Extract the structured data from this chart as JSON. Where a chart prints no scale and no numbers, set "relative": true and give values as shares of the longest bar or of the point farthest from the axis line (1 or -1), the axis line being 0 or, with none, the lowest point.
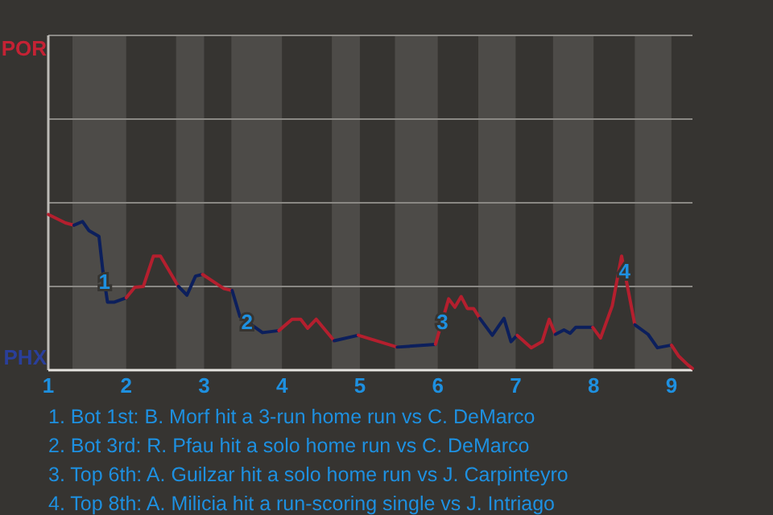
{
  "chart_data": {
    "type": "line",
    "relative": true,
    "xlim": [
      1,
      9.27
    ],
    "xticks": [
      1,
      2,
      3,
      4,
      5,
      6,
      7,
      8,
      9
    ],
    "tick_labels": "x",
    "ref_lines": [
      {
        "axis": "y",
        "value": 0.538,
        "color": "#8a8884"
      }
    ],
    "series": [
      {
        "color": "#b41f2e",
        "x": [
          1.0,
          1.22,
          1.33
        ],
        "values": [
          1.0,
          0.946,
          0.931
        ]
      },
      {
        "color": "#0c1f5c",
        "x": [
          1.33,
          1.44,
          1.52,
          1.65,
          1.7,
          1.76,
          1.85,
          2.0
        ],
        "values": [
          0.931,
          0.955,
          0.897,
          0.86,
          0.639,
          0.437,
          0.437,
          0.465
        ]
      },
      {
        "color": "#b41f2e",
        "x": [
          2.0,
          2.11,
          2.22,
          2.35,
          2.44,
          2.67
        ],
        "values": [
          0.465,
          0.533,
          0.538,
          0.733,
          0.733,
          0.538
        ]
      },
      {
        "color": "#0c1f5c",
        "x": [
          2.67,
          2.78,
          2.89,
          2.98
        ],
        "values": [
          0.538,
          0.482,
          0.604,
          0.615
        ]
      },
      {
        "color": "#b41f2e",
        "x": [
          2.98,
          3.25,
          3.36
        ],
        "values": [
          0.615,
          0.525,
          0.512
        ]
      },
      {
        "color": "#0c1f5c",
        "x": [
          3.36,
          3.46,
          3.75,
          3.96
        ],
        "values": [
          0.512,
          0.344,
          0.241,
          0.254
        ]
      },
      {
        "color": "#b41f2e",
        "x": [
          3.96,
          4.13,
          4.24,
          4.33,
          4.44,
          4.67
        ],
        "values": [
          0.254,
          0.327,
          0.327,
          0.269,
          0.327,
          0.189
        ]
      },
      {
        "color": "#0c1f5c",
        "x": [
          4.67,
          4.98
        ],
        "values": [
          0.189,
          0.224
        ]
      },
      {
        "color": "#b41f2e",
        "x": [
          4.98,
          5.48
        ],
        "values": [
          0.224,
          0.148
        ]
      },
      {
        "color": "#0c1f5c",
        "x": [
          5.48,
          5.97
        ],
        "values": [
          0.148,
          0.166
        ]
      },
      {
        "color": "#b41f2e",
        "x": [
          5.97,
          6.14,
          6.22,
          6.3,
          6.38,
          6.46,
          6.54
        ],
        "values": [
          0.166,
          0.458,
          0.404,
          0.473,
          0.396,
          0.396,
          0.333
        ]
      },
      {
        "color": "#0c1f5c",
        "x": [
          6.54,
          6.7,
          6.85,
          6.94,
          7.02
        ],
        "values": [
          0.333,
          0.224,
          0.333,
          0.183,
          0.224
        ]
      },
      {
        "color": "#b41f2e",
        "x": [
          7.02,
          7.2,
          7.34,
          7.43,
          7.51
        ],
        "values": [
          0.224,
          0.144,
          0.183,
          0.327,
          0.23
        ]
      },
      {
        "color": "#0c1f5c",
        "x": [
          7.51,
          7.62,
          7.7,
          7.77,
          7.99
        ],
        "values": [
          0.23,
          0.258,
          0.237,
          0.275,
          0.275
        ]
      },
      {
        "color": "#b41f2e",
        "x": [
          7.99,
          8.09,
          8.24,
          8.36,
          8.53
        ],
        "values": [
          0.275,
          0.206,
          0.413,
          0.733,
          0.292
        ]
      },
      {
        "color": "#0c1f5c",
        "x": [
          8.53,
          8.7,
          8.82,
          9.0
        ],
        "values": [
          0.292,
          0.23,
          0.144,
          0.161
        ]
      },
      {
        "color": "#b41f2e",
        "x": [
          9.0,
          9.09,
          9.21,
          9.27
        ],
        "values": [
          0.161,
          0.092,
          0.034,
          0.011
        ]
      }
    ],
    "bands": [
      {
        "axis": "x",
        "from": 1.31,
        "to": 2,
        "color": "#4d4b48"
      },
      {
        "axis": "x",
        "from": 2.64,
        "to": 3,
        "color": "#4d4b48"
      },
      {
        "axis": "x",
        "from": 3.35,
        "to": 4,
        "color": "#4d4b48"
      },
      {
        "axis": "x",
        "from": 4.64,
        "to": 5,
        "color": "#4d4b48"
      },
      {
        "axis": "x",
        "from": 5.45,
        "to": 6,
        "color": "#4d4b48"
      },
      {
        "axis": "x",
        "from": 6.52,
        "to": 7,
        "color": "#4d4b48"
      },
      {
        "axis": "x",
        "from": 7.48,
        "to": 8,
        "color": "#4d4b48"
      },
      {
        "axis": "x",
        "from": 8.53,
        "to": 9,
        "color": "#4d4b48"
      }
    ],
    "annotations": [
      {
        "text": "1",
        "x": 1.72,
        "y": 0.568
      },
      {
        "text": "2",
        "x": 3.55,
        "y": 0.31
      },
      {
        "text": "3",
        "x": 6.06,
        "y": 0.31
      },
      {
        "text": "4",
        "x": 8.4,
        "y": 0.634
      },
      "POR",
      "PHX",
      "1. Bot 1st: B. Morf hit a 3-run home run vs C. DeMarco",
      "2. Bot 3rd: R. Pfau hit a solo home run vs C. DeMarco",
      "3. Top 6th: A. Guilzar hit a solo home run vs J. Carpinteyro",
      "4. Top 8th: A. Milicia hit a run-scoring single vs J. Intriago"
    ]
  }
}
